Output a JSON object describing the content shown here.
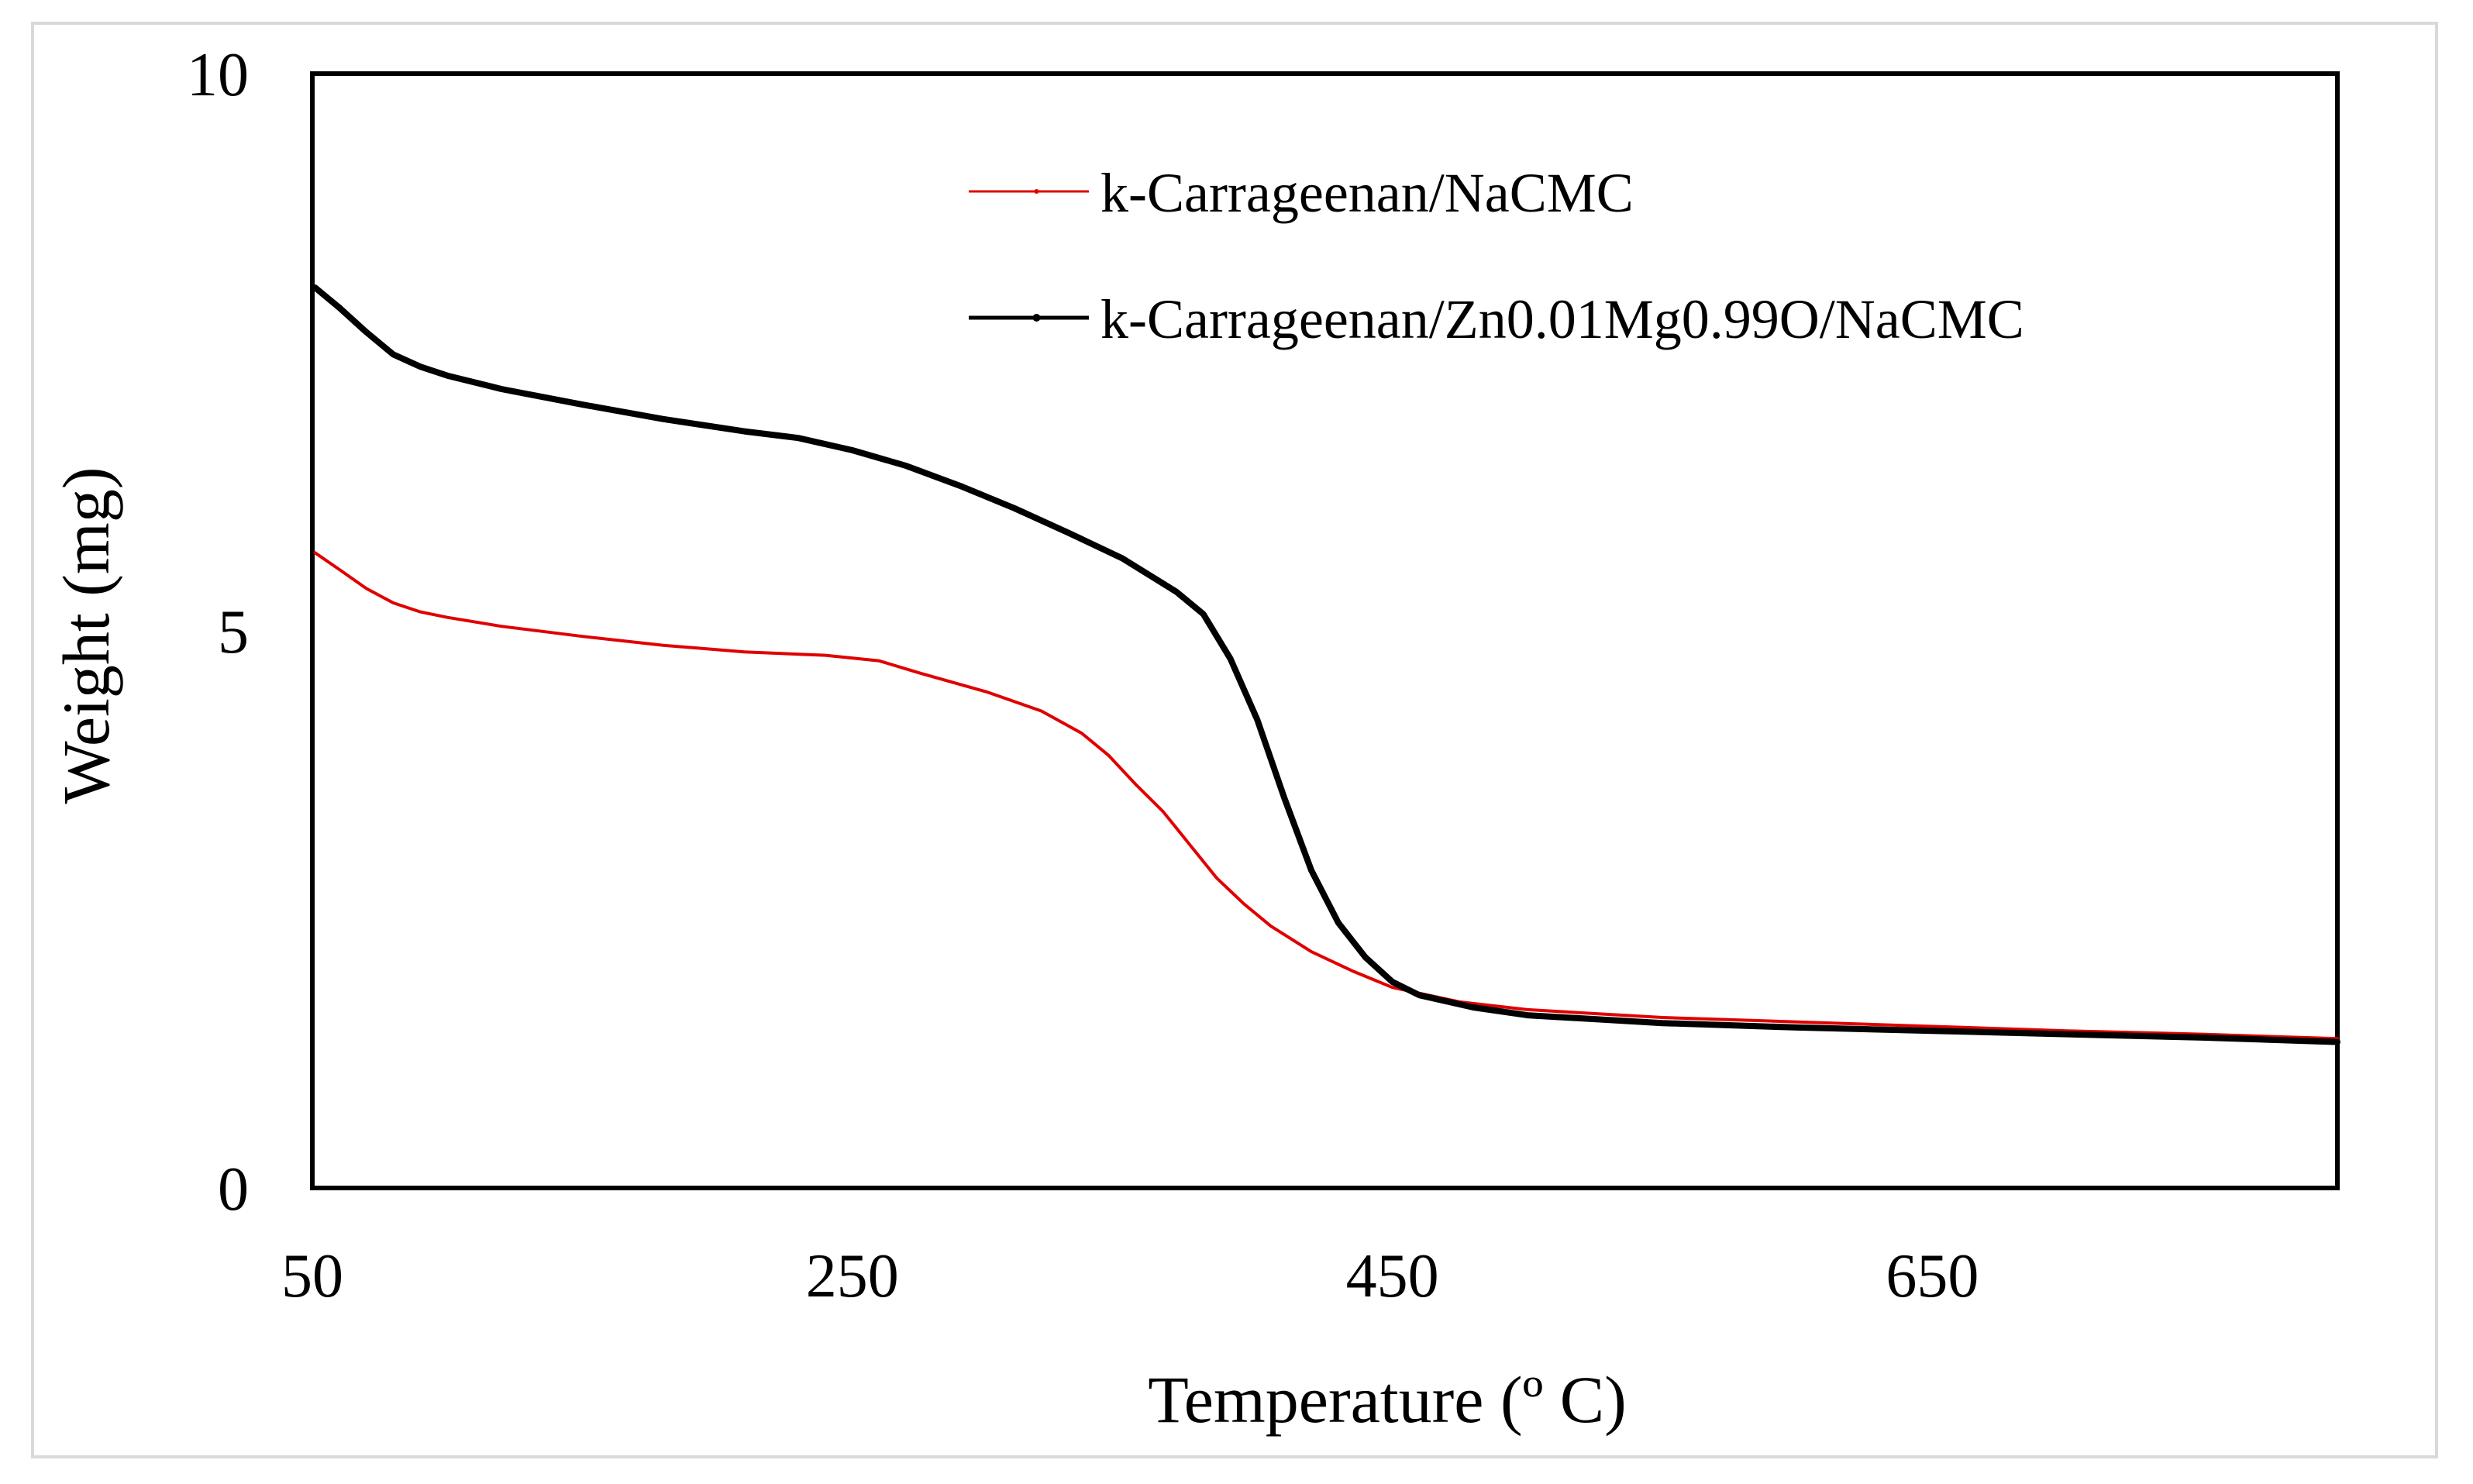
{
  "chart_data": {
    "type": "line",
    "title": "",
    "xlabel": "Temperature (º C)",
    "ylabel": "Weight (mg)",
    "xlim": [
      50,
      800
    ],
    "ylim": [
      0,
      10
    ],
    "xticks": [
      50,
      250,
      450,
      650
    ],
    "yticks": [
      0,
      5,
      10
    ],
    "xtick_labels": [
      "50",
      "250",
      "450",
      "650"
    ],
    "ytick_labels": [
      "0",
      "5",
      "10"
    ],
    "grid": false,
    "legend_position": "top-center",
    "series": [
      {
        "name": "k-Carrageenan/NaCMC",
        "color": "#e00000",
        "points": [
          [
            51,
            5.7
          ],
          [
            60,
            5.55
          ],
          [
            70,
            5.38
          ],
          [
            80,
            5.25
          ],
          [
            90,
            5.17
          ],
          [
            100,
            5.12
          ],
          [
            120,
            5.04
          ],
          [
            150,
            4.95
          ],
          [
            180,
            4.87
          ],
          [
            210,
            4.81
          ],
          [
            240,
            4.78
          ],
          [
            260,
            4.73
          ],
          [
            275,
            4.62
          ],
          [
            300,
            4.45
          ],
          [
            320,
            4.28
          ],
          [
            335,
            4.08
          ],
          [
            345,
            3.88
          ],
          [
            355,
            3.62
          ],
          [
            365,
            3.38
          ],
          [
            375,
            3.08
          ],
          [
            385,
            2.78
          ],
          [
            395,
            2.55
          ],
          [
            405,
            2.35
          ],
          [
            420,
            2.12
          ],
          [
            435,
            1.95
          ],
          [
            450,
            1.8
          ],
          [
            475,
            1.67
          ],
          [
            500,
            1.6
          ],
          [
            550,
            1.53
          ],
          [
            600,
            1.49
          ],
          [
            650,
            1.45
          ],
          [
            700,
            1.41
          ],
          [
            750,
            1.38
          ],
          [
            800,
            1.34
          ]
        ]
      },
      {
        "name": "k-Carrageenan/Zn0.01Mg0.99O/NaCMC",
        "color": "#000000",
        "points": [
          [
            51,
            8.08
          ],
          [
            60,
            7.9
          ],
          [
            70,
            7.68
          ],
          [
            80,
            7.48
          ],
          [
            90,
            7.37
          ],
          [
            100,
            7.29
          ],
          [
            120,
            7.17
          ],
          [
            150,
            7.03
          ],
          [
            180,
            6.9
          ],
          [
            210,
            6.79
          ],
          [
            230,
            6.73
          ],
          [
            250,
            6.62
          ],
          [
            270,
            6.48
          ],
          [
            290,
            6.3
          ],
          [
            310,
            6.1
          ],
          [
            330,
            5.88
          ],
          [
            350,
            5.65
          ],
          [
            370,
            5.35
          ],
          [
            380,
            5.15
          ],
          [
            390,
            4.75
          ],
          [
            400,
            4.2
          ],
          [
            410,
            3.5
          ],
          [
            420,
            2.85
          ],
          [
            430,
            2.38
          ],
          [
            440,
            2.07
          ],
          [
            450,
            1.85
          ],
          [
            460,
            1.73
          ],
          [
            480,
            1.62
          ],
          [
            500,
            1.55
          ],
          [
            550,
            1.48
          ],
          [
            600,
            1.44
          ],
          [
            650,
            1.41
          ],
          [
            700,
            1.38
          ],
          [
            750,
            1.35
          ],
          [
            800,
            1.31
          ]
        ]
      }
    ]
  }
}
